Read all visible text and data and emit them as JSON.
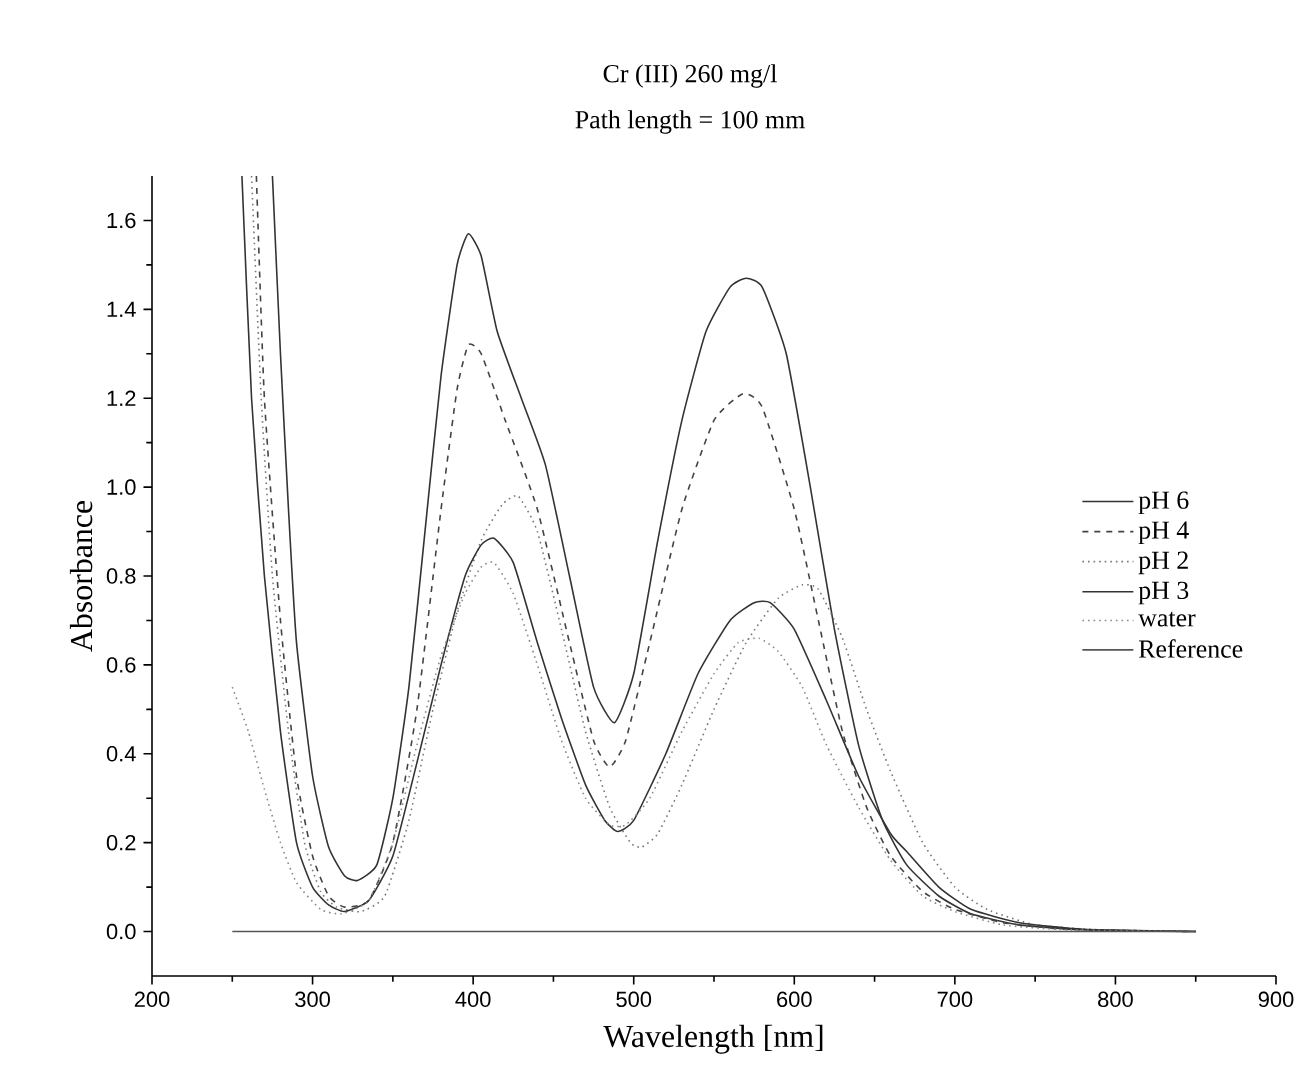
{
  "chart_data": {
    "type": "line",
    "title": "Cr (III)  260 mg/l",
    "subtitle": "Path length = 100 mm",
    "xlabel": "Wavelength [nm]",
    "ylabel": "Absorbance",
    "xlim": [
      200,
      900
    ],
    "xticks": [
      200,
      300,
      400,
      500,
      600,
      700,
      800,
      900
    ],
    "ylim": [
      -0.1,
      1.7
    ],
    "yticks": [
      {
        "value": 0,
        "label": "0.0"
      },
      {
        "value": 0.2,
        "label": "0.2"
      },
      {
        "value": 0.4,
        "label": "0.4"
      },
      {
        "value": 0.6,
        "label": "0.6"
      },
      {
        "value": 0.8,
        "label": "0.8"
      },
      {
        "value": 1.0,
        "label": "1.0"
      },
      {
        "value": 1.2,
        "label": "1.2"
      },
      {
        "value": 1.4,
        "label": "1.4"
      },
      {
        "value": 1.6,
        "label": "1.6"
      }
    ],
    "grid": false,
    "legend": "right",
    "marker": "none",
    "series": [
      {
        "name": "pH 6",
        "color": "#333333",
        "line_style": "solid",
        "x": [
          275,
          280,
          285,
          290,
          300,
          310,
          320,
          328,
          340,
          350,
          360,
          370,
          380,
          390,
          397,
          405,
          415,
          430,
          445,
          460,
          475,
          488,
          500,
          515,
          530,
          545,
          560,
          570,
          580,
          595,
          610,
          625,
          640,
          655,
          670,
          690,
          710,
          740,
          780,
          850
        ],
        "values": [
          1.7,
          1.3,
          0.95,
          0.65,
          0.35,
          0.19,
          0.125,
          0.115,
          0.15,
          0.3,
          0.55,
          0.9,
          1.25,
          1.5,
          1.57,
          1.52,
          1.35,
          1.2,
          1.05,
          0.8,
          0.55,
          0.47,
          0.58,
          0.88,
          1.15,
          1.35,
          1.45,
          1.47,
          1.45,
          1.3,
          1.0,
          0.68,
          0.42,
          0.25,
          0.15,
          0.08,
          0.04,
          0.015,
          0.004,
          0
        ]
      },
      {
        "name": "pH 4",
        "color": "#444444",
        "line_style": "dashed",
        "x": [
          265,
          270,
          280,
          290,
          300,
          310,
          320,
          335,
          350,
          365,
          380,
          390,
          397,
          405,
          420,
          440,
          460,
          475,
          485,
          495,
          510,
          530,
          550,
          568,
          580,
          600,
          615,
          630,
          645,
          660,
          680,
          700,
          730,
          770,
          850
        ],
        "values": [
          1.7,
          1.2,
          0.7,
          0.35,
          0.17,
          0.08,
          0.055,
          0.07,
          0.2,
          0.5,
          0.95,
          1.22,
          1.32,
          1.3,
          1.15,
          0.95,
          0.65,
          0.43,
          0.37,
          0.43,
          0.65,
          0.95,
          1.15,
          1.21,
          1.18,
          0.95,
          0.7,
          0.45,
          0.28,
          0.17,
          0.09,
          0.05,
          0.02,
          0.005,
          0
        ]
      },
      {
        "name": "pH 2",
        "color": "#777777",
        "line_style": "dotted",
        "x": [
          262,
          268,
          275,
          285,
          295,
          305,
          315,
          330,
          345,
          360,
          375,
          390,
          405,
          418,
          428,
          440,
          455,
          470,
          485,
          498,
          505,
          515,
          530,
          550,
          570,
          590,
          605,
          615,
          630,
          645,
          660,
          680,
          700,
          720,
          750,
          790,
          850
        ],
        "values": [
          1.7,
          1.2,
          0.8,
          0.45,
          0.2,
          0.09,
          0.055,
          0.045,
          0.08,
          0.25,
          0.5,
          0.72,
          0.88,
          0.96,
          0.98,
          0.9,
          0.68,
          0.45,
          0.28,
          0.2,
          0.19,
          0.22,
          0.33,
          0.5,
          0.65,
          0.75,
          0.78,
          0.77,
          0.66,
          0.5,
          0.36,
          0.2,
          0.1,
          0.05,
          0.015,
          0.004,
          0
        ]
      },
      {
        "name": "pH 3",
        "color": "#333333",
        "line_style": "solid",
        "x": [
          256,
          262,
          270,
          280,
          290,
          300,
          310,
          320,
          335,
          350,
          365,
          380,
          395,
          405,
          413,
          425,
          440,
          455,
          470,
          482,
          490,
          500,
          520,
          540,
          560,
          575,
          585,
          600,
          620,
          640,
          660,
          670,
          690,
          710,
          740,
          780,
          850
        ],
        "values": [
          1.7,
          1.2,
          0.8,
          0.45,
          0.2,
          0.1,
          0.06,
          0.045,
          0.07,
          0.17,
          0.38,
          0.6,
          0.8,
          0.87,
          0.885,
          0.83,
          0.65,
          0.48,
          0.33,
          0.25,
          0.225,
          0.25,
          0.4,
          0.58,
          0.7,
          0.74,
          0.74,
          0.68,
          0.52,
          0.35,
          0.22,
          0.18,
          0.1,
          0.05,
          0.02,
          0.005,
          0
        ]
      },
      {
        "name": "water",
        "color": "#888888",
        "line_style": "dotted",
        "x": [
          250,
          260,
          270,
          280,
          290,
          305,
          318,
          335,
          350,
          365,
          380,
          395,
          405,
          413,
          425,
          440,
          455,
          470,
          485,
          495,
          510,
          530,
          550,
          565,
          578,
          590,
          605,
          620,
          640,
          660,
          680,
          700,
          730,
          770,
          850
        ],
        "values": [
          0.55,
          0.45,
          0.32,
          0.2,
          0.11,
          0.05,
          0.04,
          0.07,
          0.2,
          0.42,
          0.62,
          0.76,
          0.82,
          0.83,
          0.76,
          0.6,
          0.43,
          0.3,
          0.24,
          0.24,
          0.3,
          0.45,
          0.58,
          0.65,
          0.66,
          0.63,
          0.55,
          0.42,
          0.28,
          0.16,
          0.08,
          0.045,
          0.015,
          0.004,
          0
        ]
      },
      {
        "name": "Reference",
        "color": "#555555",
        "line_style": "solid",
        "x": [
          250,
          850
        ],
        "values": [
          0,
          0
        ]
      }
    ]
  }
}
